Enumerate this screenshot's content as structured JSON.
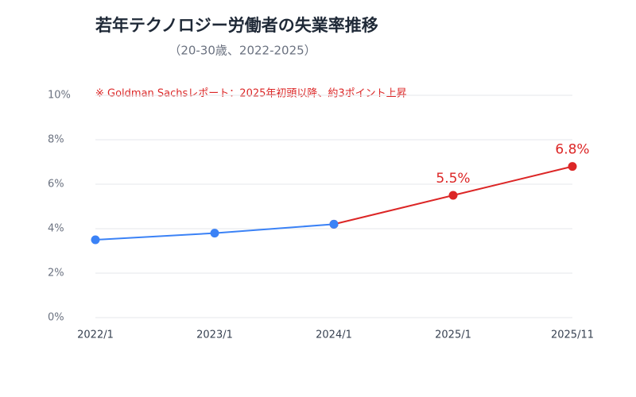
{
  "chart_data": {
    "type": "line",
    "title": "若年テクノロジー労働者の失業率推移",
    "subtitle": "（20-30歳、2022-2025）",
    "annotation": "※ Goldman Sachsレポート：2025年初頭以降、約3ポイント上昇",
    "categories": [
      "2022/1",
      "2023/1",
      "2024/1",
      "2025/1",
      "2025/11"
    ],
    "series": [
      {
        "color": "#3b82f6",
        "values": [
          3.5,
          3.8,
          4.2,
          null,
          null
        ]
      },
      {
        "color": "#dc2626",
        "values": [
          null,
          null,
          4.2,
          5.5,
          6.8
        ],
        "value_labels": [
          null,
          null,
          null,
          "5.5%",
          "6.8%"
        ]
      }
    ],
    "ylim": [
      0,
      10
    ],
    "yticks": [
      {
        "value": 0,
        "label": "0%"
      },
      {
        "value": 2,
        "label": "2%"
      },
      {
        "value": 4,
        "label": "4%"
      },
      {
        "value": 6,
        "label": "6%"
      },
      {
        "value": 8,
        "label": "8%"
      },
      {
        "value": 10,
        "label": "10%"
      }
    ],
    "grid": true
  }
}
